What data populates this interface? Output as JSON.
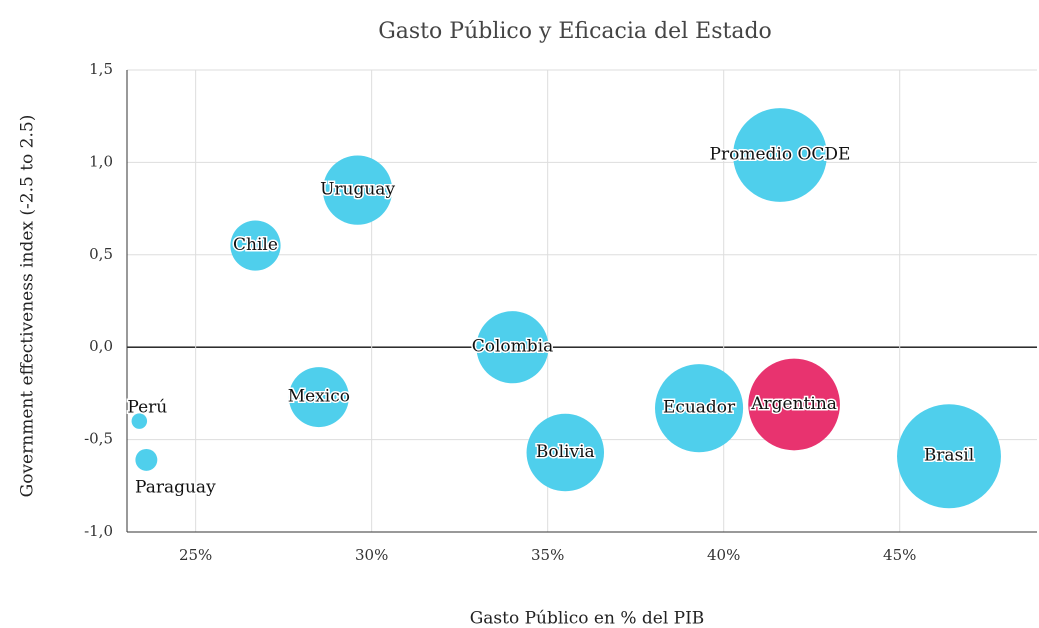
{
  "chart_data": {
    "type": "bubble",
    "title": "Gasto Público y Eficacia del Estado",
    "x_label": "Gasto Público en % del PIB",
    "y_label": "Government effectiveness index (-2.5 to 2.5)",
    "labels": [
      "Perú",
      "Paraguay",
      "Chile",
      "Uruguay",
      "Mexico",
      "Colombia",
      "Bolivia",
      "Ecuador",
      "Argentina",
      "Promedio OCDE",
      "Brasil"
    ],
    "x": [
      23.4,
      23.6,
      26.7,
      29.6,
      28.5,
      34.0,
      35.5,
      39.3,
      42.0,
      41.6,
      46.4
    ],
    "y": [
      -0.4,
      -0.61,
      0.55,
      0.85,
      -0.27,
      0.0,
      -0.57,
      -0.33,
      -0.31,
      1.04,
      -0.59
    ],
    "sizes": [
      0.6,
      1.2,
      6.3,
      12,
      9,
      13,
      15,
      19.4,
      21,
      22,
      27
    ],
    "colors": [
      "#4fcfec",
      "#4fcfec",
      "#4fcfec",
      "#4fcfec",
      "#4fcfec",
      "#4fcfec",
      "#4fcfec",
      "#4fcfec",
      "#e8336f",
      "#4fcfec",
      "#4fcfec"
    ],
    "xlim": [
      23.05,
      48.9
    ],
    "ylim": [
      -1.0,
      1.5
    ],
    "xticks": [
      {
        "value": 25,
        "label": "25%"
      },
      {
        "value": 30,
        "label": "30%"
      },
      {
        "value": 35,
        "label": "35%"
      },
      {
        "value": 40,
        "label": "40%"
      },
      {
        "value": 45,
        "label": "45%"
      }
    ],
    "yticks": [
      {
        "value": -1.0,
        "label": "-1,0"
      },
      {
        "value": -0.5,
        "label": "-0,5"
      },
      {
        "value": 0,
        "label": "0,0"
      },
      {
        "value": 0.5,
        "label": "0,5"
      },
      {
        "value": 1.0,
        "label": "1,0"
      },
      {
        "value": 1.5,
        "label": "1,5"
      }
    ],
    "grid": true
  }
}
